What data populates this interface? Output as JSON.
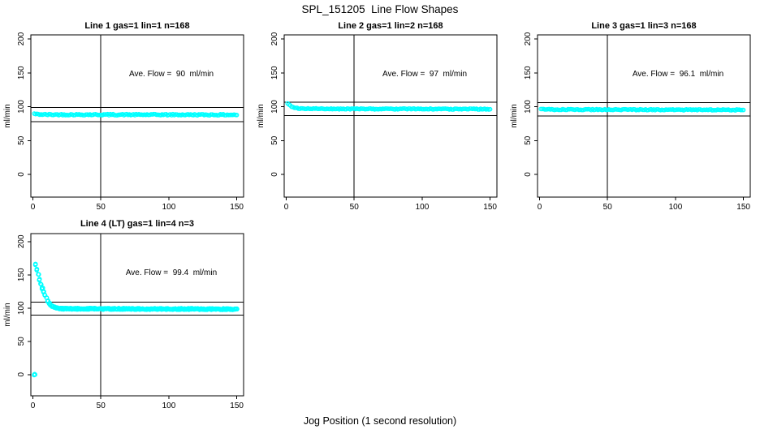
{
  "page": {
    "title": "SPL_151205  Line Flow Shapes",
    "xlabel": "Jog Position (1 second resolution)"
  },
  "colors": {
    "marker": "#00FFFF",
    "axis": "#000000",
    "background": "#FFFFFF"
  },
  "chart_data": [
    {
      "type": "scatter",
      "title": "Line 1 gas=1 lin=1 n=168",
      "annotation": "Ave. Flow =  90  ml/min",
      "ave_flow_ml_min": 90,
      "n": 168,
      "ylabel": "ml/min",
      "xticks": [
        0,
        50,
        100,
        150
      ],
      "yticks": [
        0,
        50,
        100,
        150,
        200
      ],
      "xlim": [
        -1.5,
        155
      ],
      "ylim": [
        -33.5,
        206
      ],
      "vline_x": 50,
      "hlines": [
        99,
        78
      ],
      "annotation_pos": [
        102,
        148
      ],
      "x_start": 1,
      "x_end": 150,
      "x_step": 1,
      "traces": 1,
      "noise": 0.9,
      "series_profile": [
        [
          1,
          89.5
        ],
        [
          3,
          88.8
        ],
        [
          10,
          88.3
        ],
        [
          150,
          88.0
        ]
      ],
      "extra_points": []
    },
    {
      "type": "scatter",
      "title": "Line 2 gas=1 lin=2 n=168",
      "annotation": "Ave. Flow =  97  ml/min",
      "ave_flow_ml_min": 97,
      "n": 168,
      "ylabel": "ml/min",
      "xticks": [
        0,
        50,
        100,
        150
      ],
      "yticks": [
        0,
        50,
        100,
        150,
        200
      ],
      "xlim": [
        -1.5,
        155
      ],
      "ylim": [
        -33.5,
        206
      ],
      "vline_x": 50,
      "hlines": [
        106.5,
        87
      ],
      "annotation_pos": [
        102,
        148
      ],
      "x_start": 1,
      "x_end": 150,
      "x_step": 1,
      "traces": 1,
      "noise": 0.7,
      "series_profile": [
        [
          1,
          105
        ],
        [
          2,
          103
        ],
        [
          3,
          101.5
        ],
        [
          4,
          100.3
        ],
        [
          5,
          99.4
        ],
        [
          6,
          98.7
        ],
        [
          8,
          97.9
        ],
        [
          10,
          97.4
        ],
        [
          14,
          97
        ],
        [
          25,
          96.8
        ],
        [
          150,
          96.4
        ]
      ],
      "extra_points": []
    },
    {
      "type": "scatter",
      "title": "Line 3 gas=1 lin=3 n=168",
      "annotation": "Ave. Flow =  96.1  ml/min",
      "ave_flow_ml_min": 96.1,
      "n": 168,
      "ylabel": "ml/min",
      "xticks": [
        0,
        50,
        100,
        150
      ],
      "yticks": [
        0,
        50,
        100,
        150,
        200
      ],
      "xlim": [
        -1.5,
        155
      ],
      "ylim": [
        -33.5,
        206
      ],
      "vline_x": 50,
      "hlines": [
        106,
        86.5
      ],
      "annotation_pos": [
        102,
        148
      ],
      "x_start": 1,
      "x_end": 150,
      "x_step": 1,
      "traces": 1,
      "noise": 0.7,
      "series_profile": [
        [
          1,
          97
        ],
        [
          3,
          96.2
        ],
        [
          10,
          95.8
        ],
        [
          150,
          95.2
        ]
      ],
      "extra_points": []
    },
    {
      "type": "scatter",
      "title": "Line 4 (LT) gas=1 lin=4 n=3",
      "annotation": "Ave. Flow =  99.4  ml/min",
      "ave_flow_ml_min": 99.4,
      "n": 3,
      "ylabel": "ml/min",
      "xticks": [
        0,
        50,
        100,
        150
      ],
      "yticks": [
        0,
        50,
        100,
        150,
        200
      ],
      "xlim": [
        -1.5,
        155
      ],
      "ylim": [
        -32,
        212
      ],
      "vline_x": 50,
      "hlines": [
        109,
        89.5
      ],
      "annotation_pos": [
        102,
        150
      ],
      "x_start": 2,
      "x_end": 150,
      "x_step": 1,
      "traces": 3,
      "noise": 1.1,
      "series_profile": [
        [
          2,
          166
        ],
        [
          3,
          158
        ],
        [
          4,
          150
        ],
        [
          5,
          143
        ],
        [
          6,
          136
        ],
        [
          7,
          130
        ],
        [
          8,
          124.5
        ],
        [
          9,
          119.5
        ],
        [
          10,
          115
        ],
        [
          11,
          111
        ],
        [
          12,
          107.5
        ],
        [
          13,
          105
        ],
        [
          14,
          103
        ],
        [
          15,
          101.8
        ],
        [
          16,
          100.8
        ],
        [
          17,
          100.2
        ],
        [
          18,
          99.8
        ],
        [
          20,
          99.3
        ],
        [
          24,
          99
        ],
        [
          35,
          98.9
        ],
        [
          150,
          98.4
        ]
      ],
      "extra_points": [
        [
          0.9,
          -0.8
        ],
        [
          1.3,
          0.6
        ],
        [
          1.6,
          -0.2
        ],
        [
          1.1,
          0.2
        ]
      ]
    }
  ]
}
